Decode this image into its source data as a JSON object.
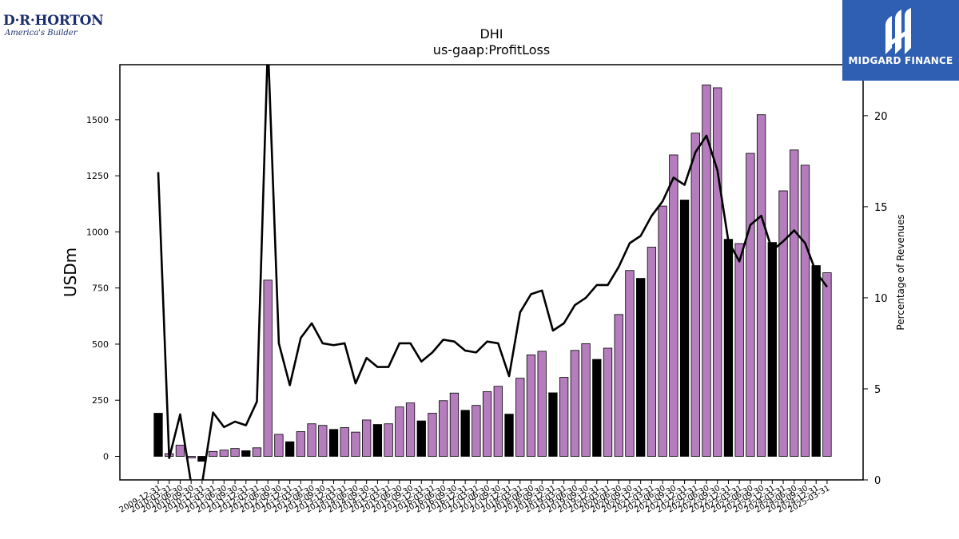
{
  "logos": {
    "left_brand": "D·R·HORTON",
    "left_tagline": "America's Builder",
    "right_wordmark": "MIDGARD FINANCE"
  },
  "colors": {
    "bar_highlight": "#000000",
    "bar_default": "#b57dbd",
    "line": "#000000",
    "logo_right_bg": "#2f5fb2",
    "logo_left_text": "#1b2f6e"
  },
  "chart_data": {
    "type": "bar",
    "title": "DHI",
    "subtitle": "us-gaap:ProfitLoss",
    "ylabel": "USDm",
    "y2label": "Percentage of Revenues",
    "ylim": [
      -105,
      1745
    ],
    "y2lim": [
      0,
      22.8
    ],
    "yticks": [
      0,
      250,
      500,
      750,
      1000,
      1250,
      1500
    ],
    "y2ticks": [
      0,
      5,
      10,
      15,
      20
    ],
    "categories": [
      "2009-12-31",
      "2010-03-31",
      "2010-06-30",
      "2010-09-30",
      "2010-12-31",
      "2011-03-31",
      "2011-06-30",
      "2011-09-30",
      "2011-12-31",
      "2012-03-31",
      "2012-06-30",
      "2012-09-30",
      "2012-12-31",
      "2013-03-31",
      "2013-06-30",
      "2013-09-30",
      "2013-12-31",
      "2014-03-31",
      "2014-06-30",
      "2014-09-30",
      "2014-12-31",
      "2015-03-31",
      "2015-06-30",
      "2015-09-30",
      "2015-12-31",
      "2016-03-31",
      "2016-06-30",
      "2016-09-30",
      "2016-12-31",
      "2017-03-31",
      "2017-06-30",
      "2017-09-30",
      "2017-12-31",
      "2018-03-31",
      "2018-06-30",
      "2018-09-30",
      "2018-12-31",
      "2019-03-31",
      "2019-06-30",
      "2019-09-30",
      "2019-12-31",
      "2020-03-31",
      "2020-06-30",
      "2020-09-30",
      "2020-12-31",
      "2021-03-31",
      "2021-06-30",
      "2021-09-30",
      "2021-12-31",
      "2022-03-31",
      "2022-06-30",
      "2022-09-30",
      "2022-12-31",
      "2023-03-31",
      "2023-06-30",
      "2023-09-30",
      "2023-12-31",
      "2024-03-31",
      "2024-06-30",
      "2024-09-30",
      "2024-12-31",
      "2025-03-31"
    ],
    "series": [
      {
        "type": "bar",
        "values": [
          192,
          12,
          50,
          -7,
          -22,
          22,
          28,
          35,
          25,
          38,
          785,
          98,
          65,
          110,
          145,
          138,
          120,
          128,
          108,
          162,
          142,
          145,
          220,
          238,
          158,
          192,
          248,
          282,
          205,
          227,
          288,
          312,
          188,
          348,
          452,
          468,
          283,
          352,
          472,
          502,
          432,
          482,
          632,
          828,
          793,
          932,
          1115,
          1343,
          1142,
          1440,
          1655,
          1642,
          967,
          948,
          1350,
          1522,
          953,
          1183,
          1365,
          1297,
          850,
          818
        ],
        "highlight": [
          true,
          false,
          false,
          false,
          true,
          false,
          false,
          false,
          true,
          false,
          false,
          false,
          true,
          false,
          false,
          false,
          true,
          false,
          false,
          false,
          true,
          false,
          false,
          false,
          true,
          false,
          false,
          false,
          true,
          false,
          false,
          false,
          true,
          false,
          false,
          false,
          true,
          false,
          false,
          false,
          true,
          false,
          false,
          false,
          true,
          false,
          false,
          false,
          true,
          false,
          false,
          false,
          true,
          false,
          false,
          false,
          true,
          false,
          false,
          false,
          true,
          false
        ]
      },
      {
        "type": "line",
        "axis": "right",
        "values": [
          16.9,
          1.2,
          3.6,
          -0.2,
          -0.2,
          3.7,
          2.9,
          3.2,
          3.0,
          4.3,
          24.0,
          7.5,
          5.2,
          7.8,
          8.6,
          7.5,
          7.4,
          7.5,
          5.3,
          6.7,
          6.2,
          6.2,
          7.5,
          7.5,
          6.5,
          7.0,
          7.7,
          7.6,
          7.1,
          7.0,
          7.6,
          7.5,
          5.7,
          9.2,
          10.2,
          10.4,
          8.2,
          8.6,
          9.6,
          10.0,
          10.7,
          10.7,
          11.7,
          13.0,
          13.4,
          14.5,
          15.3,
          16.6,
          16.2,
          18.0,
          18.9,
          17.0,
          13.1,
          12.0,
          14.0,
          14.5,
          12.6,
          13.1,
          13.7,
          13.0,
          11.4,
          10.6
        ]
      }
    ]
  }
}
